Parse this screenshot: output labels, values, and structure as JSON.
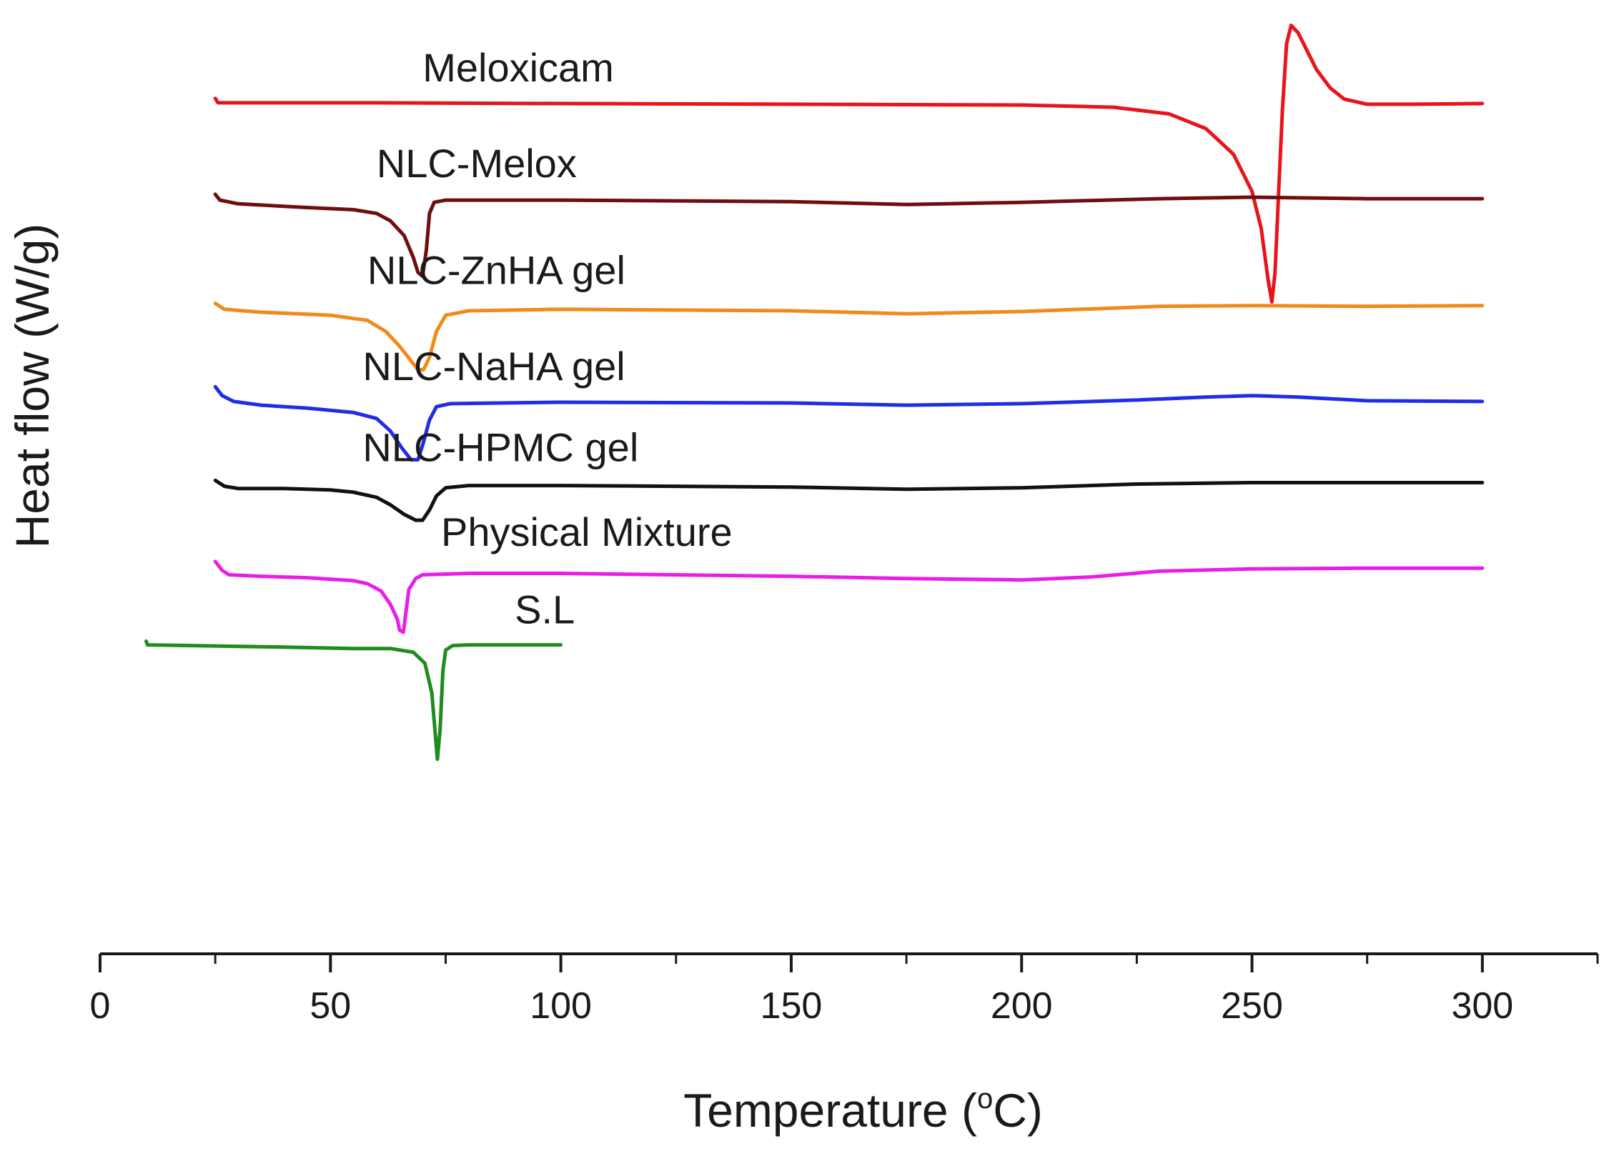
{
  "chart_data": {
    "type": "line",
    "title": "",
    "xlabel": "Temperature (°C)",
    "xlabel_parts": {
      "main": "Temperature (",
      "sup": "o",
      "tail": "C)"
    },
    "ylabel": "Heat flow (W/g)",
    "xlim": [
      0,
      325
    ],
    "xticks": [
      0,
      50,
      100,
      150,
      200,
      250,
      300
    ],
    "xtick_labels": [
      "0",
      "50",
      "100",
      "150",
      "200",
      "250",
      "300"
    ],
    "minor_xticks": [
      25,
      75,
      125,
      175,
      225,
      275,
      325
    ],
    "y_units": "offset heat flow (arbitrary, stacked)",
    "ylim": [
      -11.2,
      1.2
    ],
    "grid": false,
    "legend": "inline labels above each curve",
    "series": [
      {
        "name": "Meloxicam",
        "color": "#e8141c",
        "label_x": 70,
        "baseline": 0.0,
        "points": [
          [
            25,
            0.06
          ],
          [
            25.6,
            0.0
          ],
          [
            27,
            0.0
          ],
          [
            60,
            0.0
          ],
          [
            100,
            -0.01
          ],
          [
            150,
            -0.02
          ],
          [
            200,
            -0.03
          ],
          [
            220,
            -0.06
          ],
          [
            232,
            -0.15
          ],
          [
            240,
            -0.35
          ],
          [
            246,
            -0.7
          ],
          [
            250,
            -1.2
          ],
          [
            252,
            -1.7
          ],
          [
            253.5,
            -2.4
          ],
          [
            254.3,
            -2.7
          ],
          [
            255,
            -2.3
          ],
          [
            255.8,
            -1.2
          ],
          [
            256.6,
            -0.1
          ],
          [
            257.5,
            0.8
          ],
          [
            258.5,
            1.05
          ],
          [
            260,
            0.95
          ],
          [
            262,
            0.7
          ],
          [
            264,
            0.45
          ],
          [
            267,
            0.2
          ],
          [
            270,
            0.05
          ],
          [
            275,
            -0.02
          ],
          [
            285,
            -0.02
          ],
          [
            300,
            -0.01
          ]
        ]
      },
      {
        "name": "NLC-Melox",
        "color": "#6e0e10",
        "label_x": 60,
        "baseline": -1.3,
        "points": [
          [
            25,
            -1.24
          ],
          [
            26,
            -1.32
          ],
          [
            30,
            -1.37
          ],
          [
            45,
            -1.42
          ],
          [
            55,
            -1.45
          ],
          [
            60,
            -1.5
          ],
          [
            63,
            -1.6
          ],
          [
            66,
            -1.8
          ],
          [
            68,
            -2.1
          ],
          [
            69,
            -2.3
          ],
          [
            70,
            -2.35
          ],
          [
            70.8,
            -2.0
          ],
          [
            71.5,
            -1.5
          ],
          [
            72.5,
            -1.35
          ],
          [
            75,
            -1.32
          ],
          [
            100,
            -1.32
          ],
          [
            150,
            -1.34
          ],
          [
            175,
            -1.38
          ],
          [
            200,
            -1.35
          ],
          [
            230,
            -1.3
          ],
          [
            250,
            -1.28
          ],
          [
            275,
            -1.3
          ],
          [
            300,
            -1.3
          ]
        ]
      },
      {
        "name": "NLC-ZnHA gel",
        "color": "#f28a1a",
        "label_x": 58,
        "baseline": -2.75,
        "points": [
          [
            25,
            -2.72
          ],
          [
            27,
            -2.8
          ],
          [
            35,
            -2.84
          ],
          [
            50,
            -2.88
          ],
          [
            58,
            -2.95
          ],
          [
            62,
            -3.1
          ],
          [
            65,
            -3.3
          ],
          [
            67.5,
            -3.5
          ],
          [
            69,
            -3.62
          ],
          [
            70.2,
            -3.62
          ],
          [
            71.5,
            -3.45
          ],
          [
            73,
            -3.1
          ],
          [
            75,
            -2.88
          ],
          [
            80,
            -2.82
          ],
          [
            100,
            -2.8
          ],
          [
            150,
            -2.82
          ],
          [
            175,
            -2.86
          ],
          [
            200,
            -2.83
          ],
          [
            230,
            -2.76
          ],
          [
            250,
            -2.75
          ],
          [
            275,
            -2.76
          ],
          [
            300,
            -2.75
          ]
        ]
      },
      {
        "name": "NLC-NaHA gel",
        "color": "#1f2ee6",
        "label_x": 57,
        "baseline": -4.05,
        "points": [
          [
            25,
            -3.85
          ],
          [
            26.5,
            -3.97
          ],
          [
            29,
            -4.05
          ],
          [
            35,
            -4.1
          ],
          [
            45,
            -4.14
          ],
          [
            55,
            -4.2
          ],
          [
            60,
            -4.28
          ],
          [
            63,
            -4.45
          ],
          [
            65.5,
            -4.68
          ],
          [
            67.5,
            -4.84
          ],
          [
            69,
            -4.84
          ],
          [
            70.2,
            -4.6
          ],
          [
            71.5,
            -4.3
          ],
          [
            73,
            -4.12
          ],
          [
            76,
            -4.08
          ],
          [
            100,
            -4.06
          ],
          [
            150,
            -4.07
          ],
          [
            175,
            -4.1
          ],
          [
            200,
            -4.08
          ],
          [
            225,
            -4.03
          ],
          [
            240,
            -3.99
          ],
          [
            250,
            -3.97
          ],
          [
            260,
            -3.99
          ],
          [
            275,
            -4.04
          ],
          [
            300,
            -4.05
          ]
        ]
      },
      {
        "name": "NLC-HPMC gel",
        "color": "#111111",
        "label_x": 57,
        "baseline": -5.15,
        "points": [
          [
            25,
            -5.12
          ],
          [
            27,
            -5.2
          ],
          [
            30,
            -5.23
          ],
          [
            40,
            -5.23
          ],
          [
            50,
            -5.25
          ],
          [
            55,
            -5.28
          ],
          [
            60,
            -5.35
          ],
          [
            63,
            -5.45
          ],
          [
            66,
            -5.58
          ],
          [
            68.5,
            -5.66
          ],
          [
            70,
            -5.66
          ],
          [
            71.5,
            -5.52
          ],
          [
            73,
            -5.33
          ],
          [
            75,
            -5.22
          ],
          [
            80,
            -5.19
          ],
          [
            100,
            -5.19
          ],
          [
            150,
            -5.21
          ],
          [
            175,
            -5.24
          ],
          [
            200,
            -5.22
          ],
          [
            225,
            -5.17
          ],
          [
            250,
            -5.15
          ],
          [
            275,
            -5.15
          ],
          [
            300,
            -5.15
          ]
        ]
      },
      {
        "name": "Physical Mixture",
        "color": "#e81ee8",
        "label_x": 74,
        "baseline": -6.3,
        "points": [
          [
            25,
            -6.22
          ],
          [
            26.5,
            -6.34
          ],
          [
            28,
            -6.4
          ],
          [
            35,
            -6.42
          ],
          [
            45,
            -6.44
          ],
          [
            55,
            -6.48
          ],
          [
            58,
            -6.52
          ],
          [
            61,
            -6.62
          ],
          [
            63,
            -6.8
          ],
          [
            64.5,
            -7.0
          ],
          [
            65,
            -7.15
          ],
          [
            65.8,
            -7.18
          ],
          [
            66.2,
            -7.0
          ],
          [
            67,
            -6.6
          ],
          [
            68.5,
            -6.45
          ],
          [
            70,
            -6.4
          ],
          [
            80,
            -6.38
          ],
          [
            100,
            -6.38
          ],
          [
            150,
            -6.42
          ],
          [
            175,
            -6.45
          ],
          [
            200,
            -6.47
          ],
          [
            215,
            -6.43
          ],
          [
            230,
            -6.35
          ],
          [
            250,
            -6.32
          ],
          [
            275,
            -6.31
          ],
          [
            300,
            -6.31
          ]
        ]
      },
      {
        "name": "S.L",
        "color": "#208c1e",
        "label_x": 90,
        "baseline": -7.35,
        "points": [
          [
            10,
            -7.3
          ],
          [
            10.3,
            -7.35
          ],
          [
            20,
            -7.36
          ],
          [
            40,
            -7.38
          ],
          [
            55,
            -7.4
          ],
          [
            63,
            -7.4
          ],
          [
            68,
            -7.45
          ],
          [
            70.5,
            -7.6
          ],
          [
            72,
            -8.0
          ],
          [
            72.8,
            -8.6
          ],
          [
            73.2,
            -8.9
          ],
          [
            73.8,
            -8.5
          ],
          [
            74.4,
            -7.7
          ],
          [
            75,
            -7.42
          ],
          [
            76.5,
            -7.36
          ],
          [
            80,
            -7.35
          ],
          [
            100,
            -7.35
          ]
        ]
      }
    ]
  }
}
